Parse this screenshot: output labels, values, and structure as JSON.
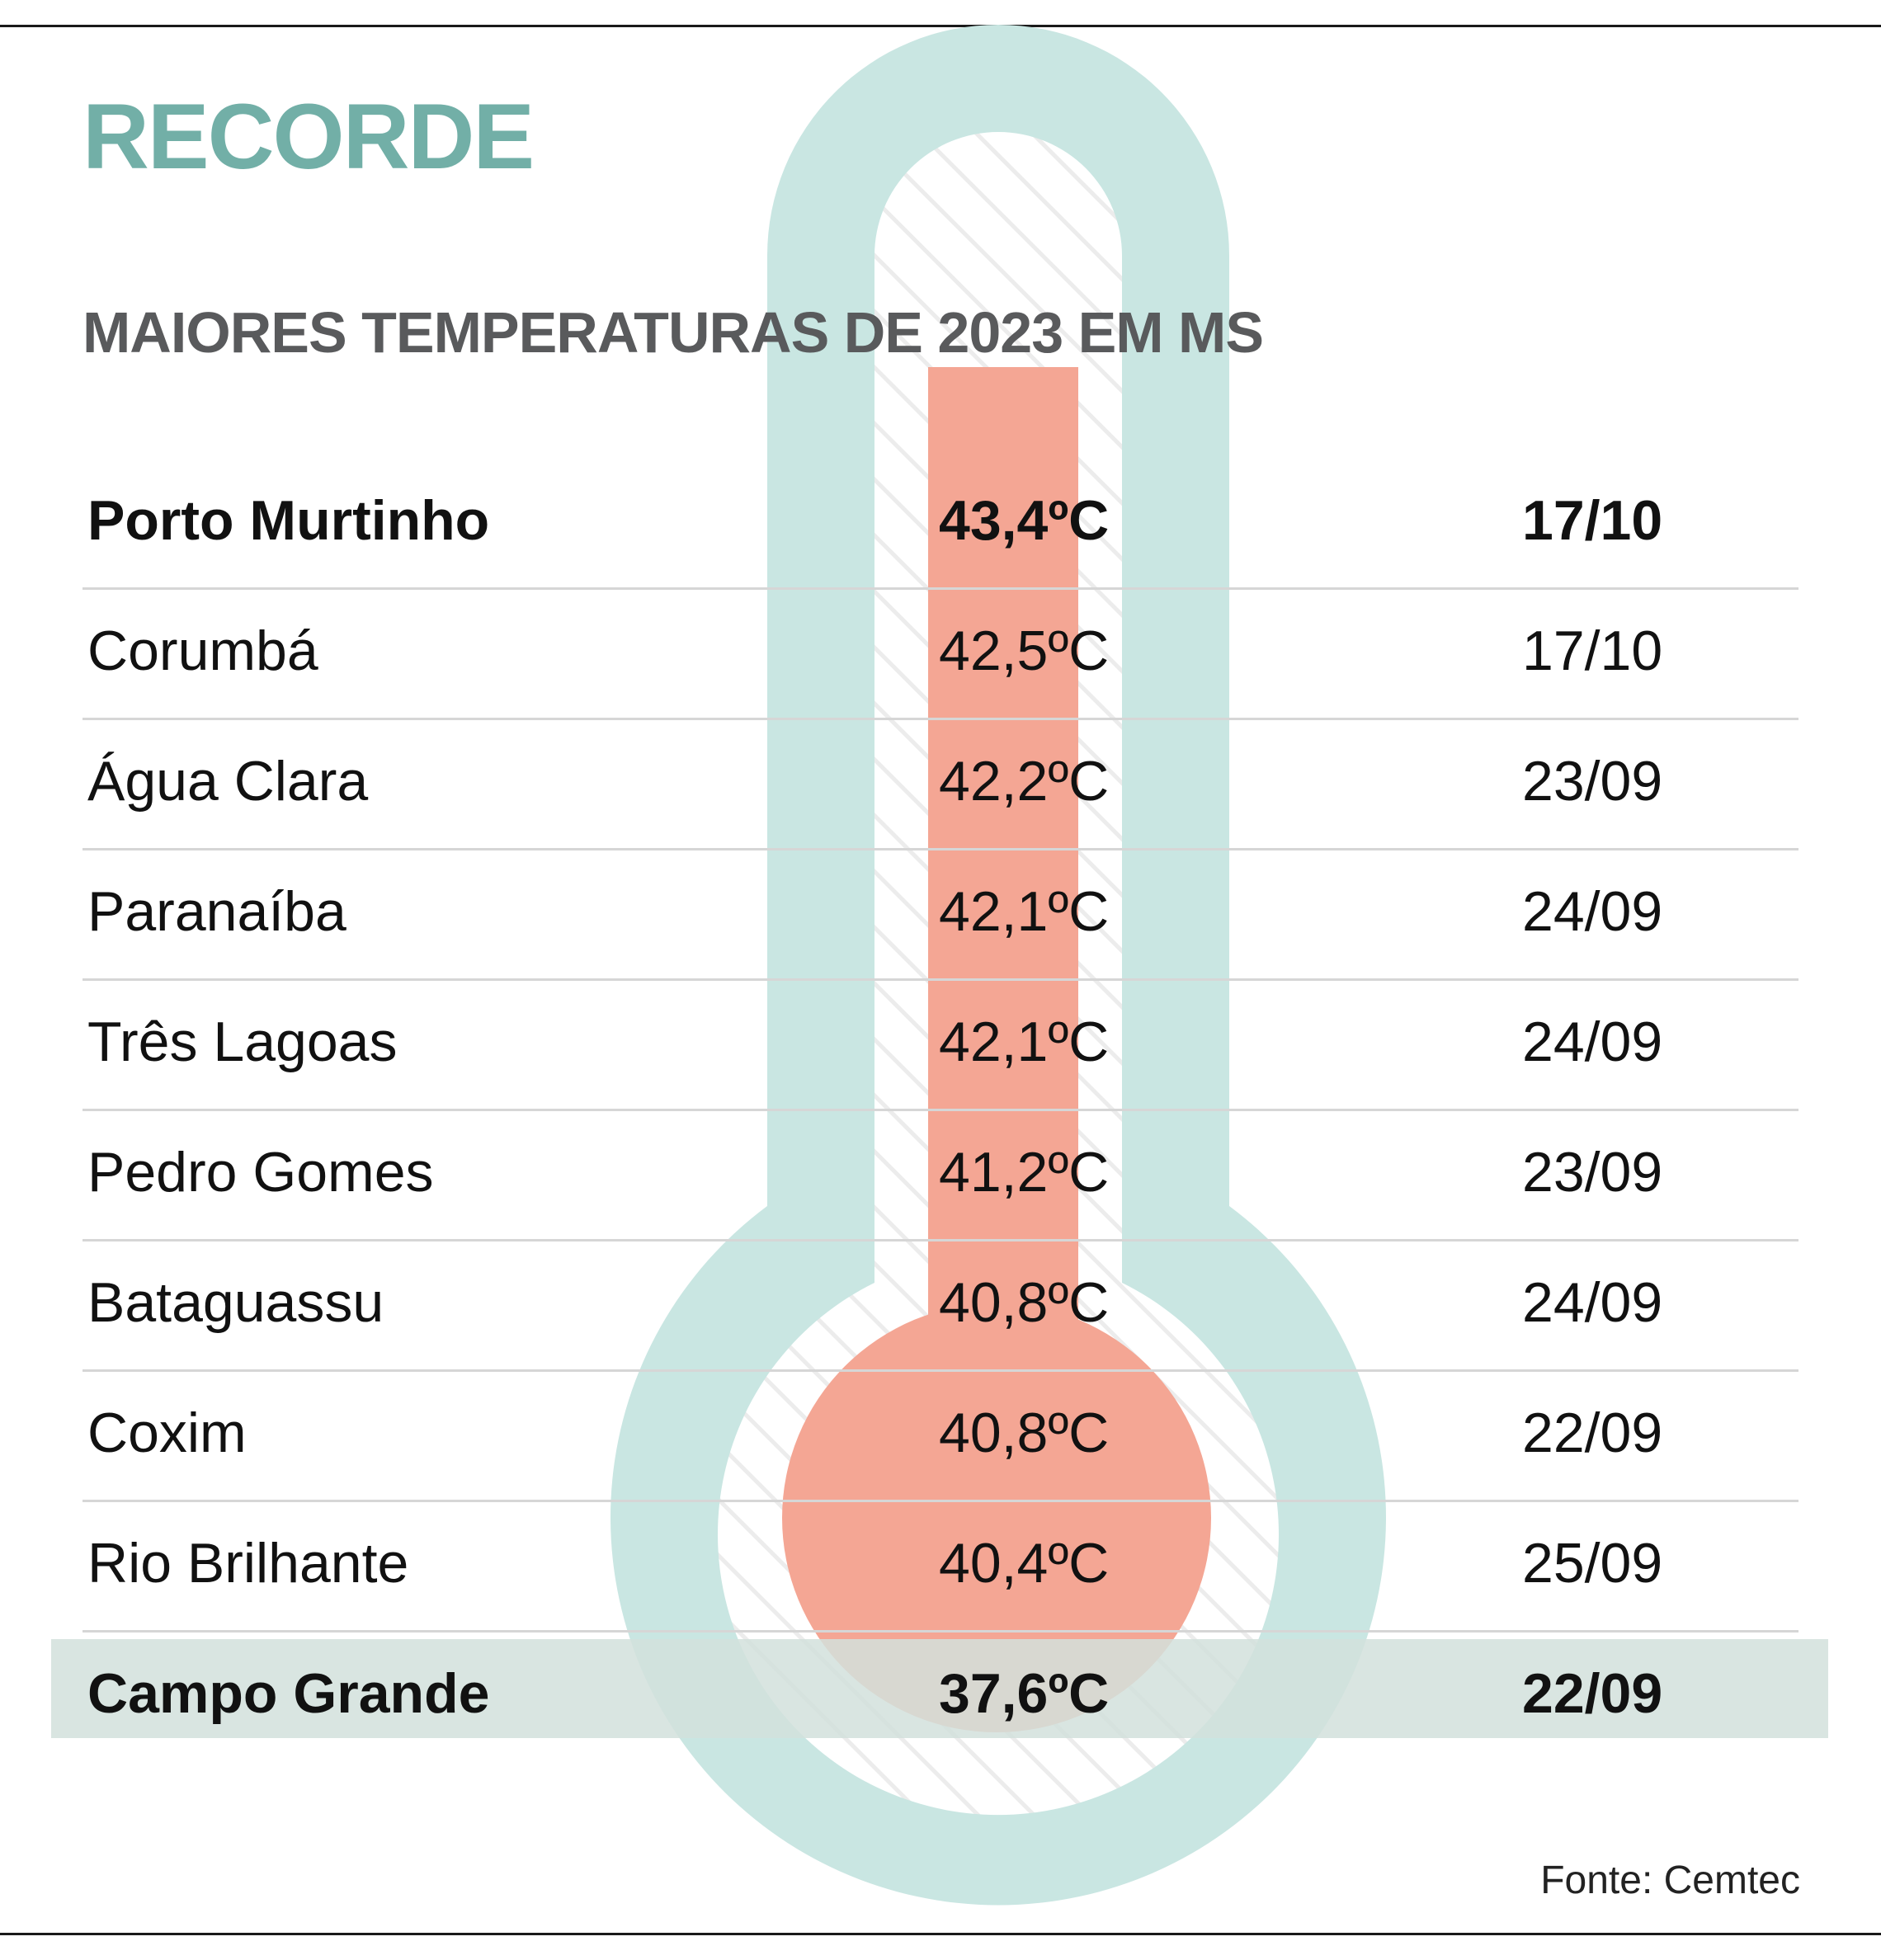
{
  "title": "RECORDE",
  "subtitle": "MAIORES TEMPERATURAS DE 2023 EM MS",
  "source": "Fonte: Cemtec",
  "colors": {
    "title": "#72afa7",
    "subtitle": "#595a5c",
    "thermometer_outline": "#c9e6e2",
    "thermometer_fill": "#f4a694",
    "highlight_band": "#d2e0dc",
    "row_separator": "#d6d6d6",
    "rule": "#1a1a1a"
  },
  "chart_data": {
    "type": "table",
    "columns": [
      "city",
      "temperature",
      "date"
    ],
    "rows": [
      {
        "city": "Porto Murtinho",
        "temperature": "43,4ºC",
        "date": "17/10",
        "value": 43.4,
        "bold": true,
        "highlight": false
      },
      {
        "city": "Corumbá",
        "temperature": "42,5ºC",
        "date": "17/10",
        "value": 42.5,
        "bold": false,
        "highlight": false
      },
      {
        "city": "Água Clara",
        "temperature": "42,2ºC",
        "date": "23/09",
        "value": 42.2,
        "bold": false,
        "highlight": false
      },
      {
        "city": "Paranaíba",
        "temperature": "42,1ºC",
        "date": "24/09",
        "value": 42.1,
        "bold": false,
        "highlight": false
      },
      {
        "city": "Três Lagoas",
        "temperature": "42,1ºC",
        "date": "24/09",
        "value": 42.1,
        "bold": false,
        "highlight": false
      },
      {
        "city": "Pedro Gomes",
        "temperature": "41,2ºC",
        "date": "23/09",
        "value": 41.2,
        "bold": false,
        "highlight": false
      },
      {
        "city": "Bataguassu",
        "temperature": "40,8ºC",
        "date": "24/09",
        "value": 40.8,
        "bold": false,
        "highlight": false
      },
      {
        "city": "Coxim",
        "temperature": "40,8ºC",
        "date": "22/09",
        "value": 40.8,
        "bold": false,
        "highlight": false
      },
      {
        "city": "Rio Brilhante",
        "temperature": "40,4ºC",
        "date": "25/09",
        "value": 40.4,
        "bold": false,
        "highlight": false
      },
      {
        "city": "Campo Grande",
        "temperature": "37,6ºC",
        "date": "22/09",
        "value": 37.6,
        "bold": true,
        "highlight": true
      }
    ]
  }
}
